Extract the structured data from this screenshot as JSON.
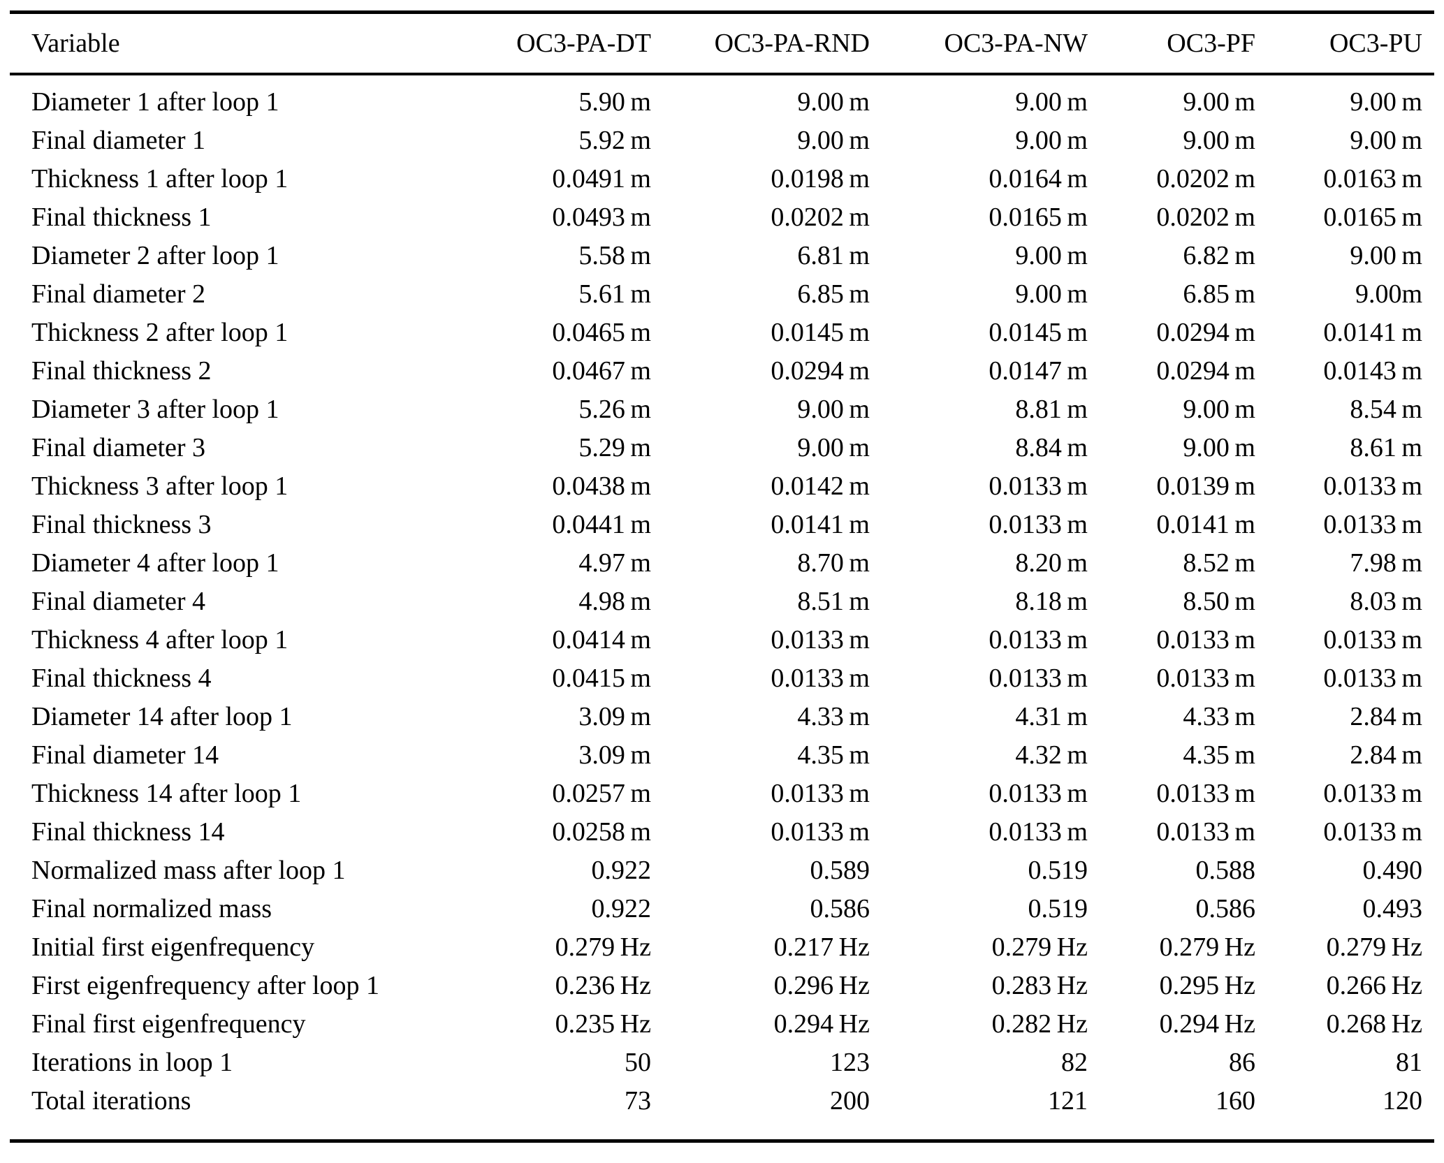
{
  "colors": {
    "text": "#000000",
    "background": "#ffffff",
    "rule": "#000000"
  },
  "table": {
    "columns": [
      "Variable",
      "OC3-PA-DT",
      "OC3-PA-RND",
      "OC3-PA-NW",
      "OC3-PF",
      "OC3-PU"
    ],
    "rows": [
      {
        "label": "Diameter 1 after loop 1",
        "values": [
          "5.90 m",
          "9.00 m",
          "9.00 m",
          "9.00 m",
          "9.00 m"
        ]
      },
      {
        "label": "Final diameter 1",
        "values": [
          "5.92 m",
          "9.00 m",
          "9.00 m",
          "9.00 m",
          "9.00 m"
        ]
      },
      {
        "label": "Thickness 1 after loop 1",
        "values": [
          "0.0491 m",
          "0.0198 m",
          "0.0164 m",
          "0.0202 m",
          "0.0163 m"
        ]
      },
      {
        "label": "Final thickness 1",
        "values": [
          "0.0493 m",
          "0.0202 m",
          "0.0165 m",
          "0.0202 m",
          "0.0165 m"
        ]
      },
      {
        "label": "Diameter 2 after loop 1",
        "values": [
          "5.58 m",
          "6.81 m",
          "9.00 m",
          "6.82 m",
          "9.00 m"
        ]
      },
      {
        "label": "Final diameter 2",
        "values": [
          "5.61 m",
          "6.85 m",
          "9.00 m",
          "6.85 m",
          "9.00m"
        ]
      },
      {
        "label": "Thickness 2 after loop 1",
        "values": [
          "0.0465 m",
          "0.0145 m",
          "0.0145 m",
          "0.0294 m",
          "0.0141 m"
        ]
      },
      {
        "label": "Final thickness 2",
        "values": [
          "0.0467 m",
          "0.0294 m",
          "0.0147 m",
          "0.0294 m",
          "0.0143 m"
        ]
      },
      {
        "label": "Diameter 3 after loop 1",
        "values": [
          "5.26 m",
          "9.00 m",
          "8.81 m",
          "9.00 m",
          "8.54 m"
        ]
      },
      {
        "label": "Final diameter 3",
        "values": [
          "5.29 m",
          "9.00 m",
          "8.84 m",
          "9.00 m",
          "8.61 m"
        ]
      },
      {
        "label": "Thickness 3 after loop 1",
        "values": [
          "0.0438 m",
          "0.0142 m",
          "0.0133 m",
          "0.0139 m",
          "0.0133 m"
        ]
      },
      {
        "label": "Final thickness 3",
        "values": [
          "0.0441 m",
          "0.0141 m",
          "0.0133 m",
          "0.0141 m",
          "0.0133 m"
        ]
      },
      {
        "label": "Diameter 4 after loop 1",
        "values": [
          "4.97 m",
          "8.70 m",
          "8.20 m",
          "8.52 m",
          "7.98 m"
        ]
      },
      {
        "label": "Final diameter 4",
        "values": [
          "4.98 m",
          "8.51 m",
          "8.18 m",
          "8.50 m",
          "8.03 m"
        ]
      },
      {
        "label": "Thickness 4 after loop 1",
        "values": [
          "0.0414 m",
          "0.0133 m",
          "0.0133 m",
          "0.0133 m",
          "0.0133 m"
        ]
      },
      {
        "label": "Final thickness 4",
        "values": [
          "0.0415 m",
          "0.0133 m",
          "0.0133 m",
          "0.0133 m",
          "0.0133 m"
        ]
      },
      {
        "label": "Diameter 14 after loop 1",
        "values": [
          "3.09 m",
          "4.33 m",
          "4.31 m",
          "4.33 m",
          "2.84 m"
        ]
      },
      {
        "label": "Final diameter 14",
        "values": [
          "3.09 m",
          "4.35 m",
          "4.32 m",
          "4.35 m",
          "2.84 m"
        ]
      },
      {
        "label": "Thickness 14 after loop 1",
        "values": [
          "0.0257 m",
          "0.0133 m",
          "0.0133 m",
          "0.0133 m",
          "0.0133 m"
        ]
      },
      {
        "label": "Final thickness 14",
        "values": [
          "0.0258 m",
          "0.0133 m",
          "0.0133 m",
          "0.0133 m",
          "0.0133 m"
        ]
      },
      {
        "label": "Normalized mass after loop 1",
        "values": [
          "0.922",
          "0.589",
          "0.519",
          "0.588",
          "0.490"
        ]
      },
      {
        "label": "Final normalized mass",
        "values": [
          "0.922",
          "0.586",
          "0.519",
          "0.586",
          "0.493"
        ]
      },
      {
        "label": "Initial first eigenfrequency",
        "values": [
          "0.279 Hz",
          "0.217 Hz",
          "0.279 Hz",
          "0.279 Hz",
          "0.279 Hz"
        ]
      },
      {
        "label": "First eigenfrequency after loop 1",
        "values": [
          "0.236 Hz",
          "0.296 Hz",
          "0.283 Hz",
          "0.295 Hz",
          "0.266 Hz"
        ]
      },
      {
        "label": "Final first eigenfrequency",
        "values": [
          "0.235 Hz",
          "0.294 Hz",
          "0.282 Hz",
          "0.294 Hz",
          "0.268 Hz"
        ]
      },
      {
        "label": "Iterations in loop 1",
        "values": [
          "50",
          "123",
          "82",
          "86",
          "81"
        ]
      },
      {
        "label": "Total iterations",
        "values": [
          "73",
          "200",
          "121",
          "160",
          "120"
        ]
      }
    ]
  }
}
